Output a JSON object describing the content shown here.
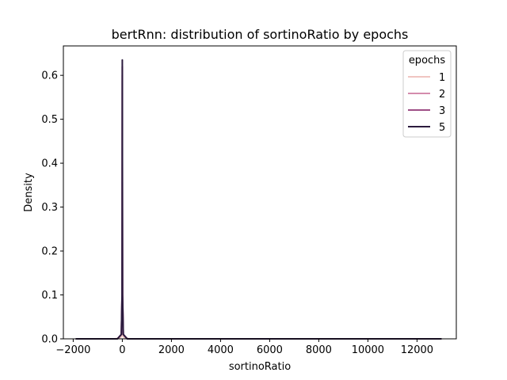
{
  "chart_data": {
    "type": "line",
    "title": "bertRnn: distribution of sortinoRatio by epochs",
    "xlabel": "sortinoRatio",
    "ylabel": "Density",
    "xlim": [
      -2400,
      13600
    ],
    "ylim": [
      0,
      0.667
    ],
    "x_ticks": [
      -2000,
      0,
      2000,
      4000,
      6000,
      8000,
      10000,
      12000
    ],
    "x_tick_labels": [
      "−2000",
      "0",
      "2000",
      "4000",
      "6000",
      "8000",
      "10000",
      "12000"
    ],
    "y_ticks": [
      0.0,
      0.1,
      0.2,
      0.3,
      0.4,
      0.5,
      0.6
    ],
    "y_tick_labels": [
      "0.0",
      "0.1",
      "0.2",
      "0.3",
      "0.4",
      "0.5",
      "0.6"
    ],
    "grid": false,
    "legend": {
      "title": "epochs",
      "placement": "top-right"
    },
    "series": [
      {
        "name": "1",
        "color": "#f0c5c1",
        "x": [
          -1900,
          -300,
          -100,
          -30,
          -10,
          0,
          10,
          30,
          100,
          300,
          13000
        ],
        "y": [
          0.0,
          0.0,
          0.002,
          0.006,
          0.012,
          0.015,
          0.012,
          0.006,
          0.002,
          0.0,
          0.0
        ]
      },
      {
        "name": "2",
        "color": "#d48cad",
        "x": [
          -1900,
          -200,
          -40,
          -10,
          -5,
          0,
          5,
          10,
          40,
          200,
          13000
        ],
        "y": [
          0.0,
          0.0,
          0.01,
          0.1,
          0.3,
          0.6,
          0.3,
          0.1,
          0.01,
          0.0,
          0.0
        ]
      },
      {
        "name": "3",
        "color": "#9e4f86",
        "x": [
          -1900,
          -200,
          -40,
          -10,
          -5,
          0,
          5,
          10,
          40,
          200,
          13000
        ],
        "y": [
          0.0,
          0.0,
          0.01,
          0.1,
          0.3,
          0.62,
          0.3,
          0.1,
          0.01,
          0.0,
          0.0
        ]
      },
      {
        "name": "5",
        "color": "#2b1b3e",
        "x": [
          -1900,
          -200,
          -40,
          -10,
          -5,
          0,
          5,
          10,
          40,
          200,
          13000
        ],
        "y": [
          0.0,
          0.0,
          0.01,
          0.1,
          0.3,
          0.635,
          0.3,
          0.1,
          0.01,
          0.0,
          0.0
        ]
      }
    ]
  }
}
